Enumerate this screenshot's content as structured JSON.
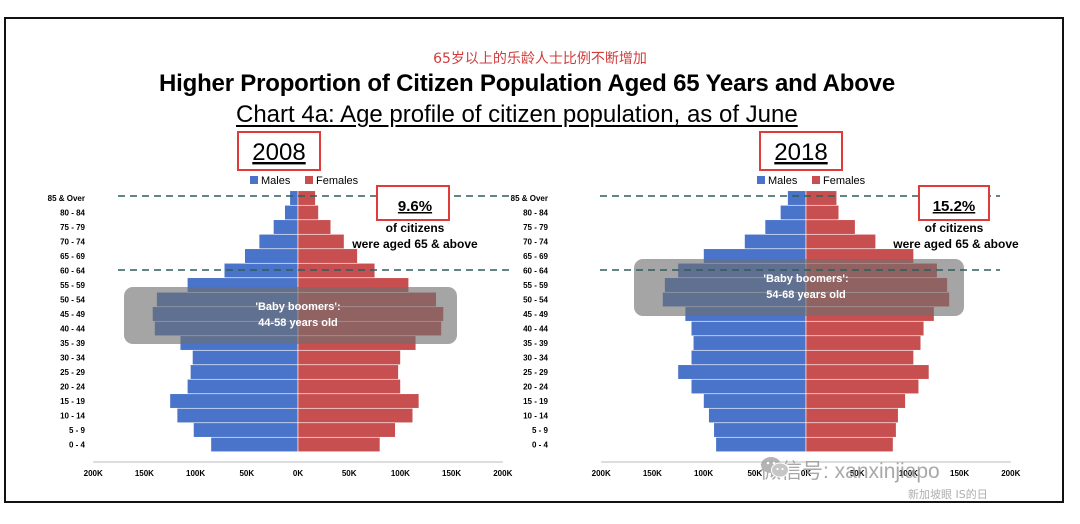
{
  "header": {
    "cn_subtitle": "65岁以上的乐龄人士比例不断增加",
    "title": "Higher Proportion of Citizen Population Aged 65 Years and Above",
    "chart_subtitle": "Chart 4a: Age profile of citizen population, as of June"
  },
  "watermark": {
    "text": "微信号: xanxinjiapo",
    "text2": "新加坡眼 IS的日"
  },
  "colors": {
    "males": "#4a74c9",
    "females": "#c84f4f",
    "highlight": "#e03b3b",
    "baby_boomer_band": "#6e6e6e",
    "dashed_line": "#2f5d5d"
  },
  "chart_data": [
    {
      "type": "bar",
      "orientation": "horizontal-population-pyramid",
      "year_label": "2008",
      "title": "Chart 4a: Age profile of citizen population, as of June",
      "categories": [
        "0 - 4",
        "5 - 9",
        "10 - 14",
        "15 - 19",
        "20 - 24",
        "25 - 29",
        "30 - 34",
        "35 - 39",
        "40 - 44",
        "45 - 49",
        "50 - 54",
        "55 - 59",
        "60 - 64",
        "65 - 69",
        "70 - 74",
        "75 - 79",
        "80 - 84",
        "85 & Over"
      ],
      "series": [
        {
          "name": "Males",
          "values": [
            85000,
            102000,
            118000,
            125000,
            108000,
            105000,
            103000,
            115000,
            140000,
            142000,
            138000,
            108000,
            72000,
            52000,
            38000,
            24000,
            13000,
            8000
          ]
        },
        {
          "name": "Females",
          "values": [
            80000,
            95000,
            112000,
            118000,
            100000,
            98000,
            100000,
            115000,
            140000,
            142000,
            135000,
            108000,
            75000,
            58000,
            45000,
            32000,
            20000,
            17000
          ]
        }
      ],
      "xlim": [
        -200000,
        200000
      ],
      "xticks": [
        "200K",
        "150K",
        "100K",
        "50K",
        "0K",
        "50K",
        "100K",
        "150K",
        "200K"
      ],
      "legend": [
        "Males",
        "Females"
      ],
      "callout_value": "9.6%",
      "callout_text_1": "of citizens",
      "callout_text_2": "were aged 65 & above",
      "band_label_1": "'Baby boomers':",
      "band_label_2": "44-58 years old"
    },
    {
      "type": "bar",
      "orientation": "horizontal-population-pyramid",
      "year_label": "2018",
      "title": "Chart 4a: Age profile of citizen population, as of June",
      "categories": [
        "0 - 4",
        "5 - 9",
        "10 - 14",
        "15 - 19",
        "20 - 24",
        "25 - 29",
        "30 - 34",
        "35 - 39",
        "40 - 44",
        "45 - 49",
        "50 - 54",
        "55 - 59",
        "60 - 64",
        "65 - 69",
        "70 - 74",
        "75 - 79",
        "80 - 84",
        "85 & Over"
      ],
      "series": [
        {
          "name": "Males",
          "values": [
            88000,
            90000,
            95000,
            100000,
            112000,
            125000,
            112000,
            110000,
            112000,
            118000,
            140000,
            138000,
            125000,
            100000,
            60000,
            40000,
            25000,
            18000
          ]
        },
        {
          "name": "Females",
          "values": [
            85000,
            88000,
            90000,
            97000,
            110000,
            120000,
            105000,
            112000,
            115000,
            125000,
            140000,
            138000,
            128000,
            105000,
            68000,
            48000,
            32000,
            30000
          ]
        }
      ],
      "xlim": [
        -200000,
        200000
      ],
      "xticks": [
        "200K",
        "150K",
        "100K",
        "50K",
        "0K",
        "50K",
        "100K",
        "150K",
        "200K"
      ],
      "legend": [
        "Males",
        "Females"
      ],
      "callout_value": "15.2%",
      "callout_text_1": "of citizens",
      "callout_text_2": "were aged 65 & above",
      "band_label_1": "'Baby boomers':",
      "band_label_2": "54-68 years old"
    }
  ]
}
